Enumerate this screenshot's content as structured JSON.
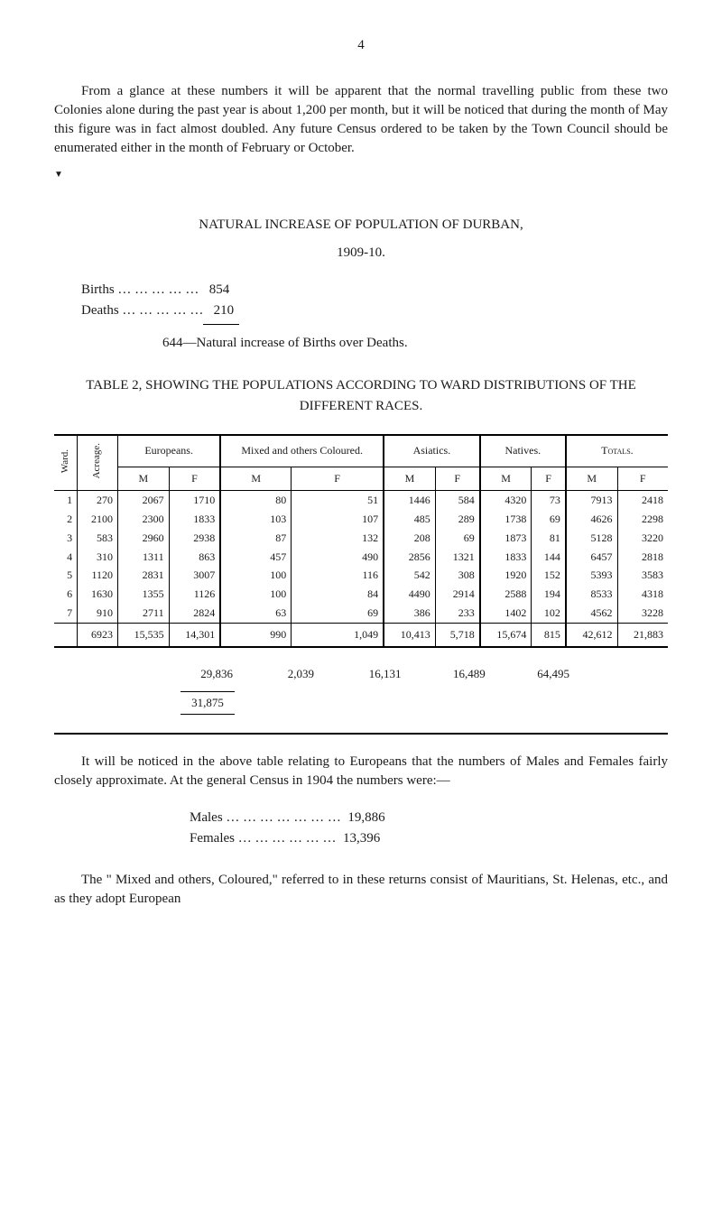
{
  "page_number": "4",
  "para1": "From a glance at these numbers it will be apparent that the normal travelling public from these two Colonies alone during the past year is about 1,200 per month, but it will be noticed that during the month of May this figure was in fact almost doubled. Any future Census ordered to be taken by the Town Council should be enumerated either in the month of February or October.",
  "section1_title": "NATURAL INCREASE OF POPULATION OF DURBAN,",
  "section1_subtitle": "1909-10.",
  "births_label": "Births … … … … …",
  "births_value": "854",
  "deaths_label": "Deaths … … … … …",
  "deaths_value": "210",
  "natural_increase": "644—Natural increase of Births over Deaths.",
  "table_caption": "TABLE 2, SHOWING THE POPULATIONS ACCORDING TO WARD DISTRIBUTIONS OF THE DIFFERENT RACES.",
  "table": {
    "col_ward": "Ward.",
    "col_acreage": "Acreage.",
    "groups": [
      "Europeans.",
      "Mixed and others Coloured.",
      "Asiatics.",
      "Natives.",
      "Totals."
    ],
    "sub_m": "M",
    "sub_f": "F",
    "rows": [
      {
        "ward": "1",
        "acre": "270",
        "em": "2067",
        "ef": "1710",
        "mm": "80",
        "mf": "51",
        "am": "1446",
        "af": "584",
        "nm": "4320",
        "nf": "73",
        "tm": "7913",
        "tf": "2418"
      },
      {
        "ward": "2",
        "acre": "2100",
        "em": "2300",
        "ef": "1833",
        "mm": "103",
        "mf": "107",
        "am": "485",
        "af": "289",
        "nm": "1738",
        "nf": "69",
        "tm": "4626",
        "tf": "2298"
      },
      {
        "ward": "3",
        "acre": "583",
        "em": "2960",
        "ef": "2938",
        "mm": "87",
        "mf": "132",
        "am": "208",
        "af": "69",
        "nm": "1873",
        "nf": "81",
        "tm": "5128",
        "tf": "3220"
      },
      {
        "ward": "4",
        "acre": "310",
        "em": "1311",
        "ef": "863",
        "mm": "457",
        "mf": "490",
        "am": "2856",
        "af": "1321",
        "nm": "1833",
        "nf": "144",
        "tm": "6457",
        "tf": "2818"
      },
      {
        "ward": "5",
        "acre": "1120",
        "em": "2831",
        "ef": "3007",
        "mm": "100",
        "mf": "116",
        "am": "542",
        "af": "308",
        "nm": "1920",
        "nf": "152",
        "tm": "5393",
        "tf": "3583"
      },
      {
        "ward": "6",
        "acre": "1630",
        "em": "1355",
        "ef": "1126",
        "mm": "100",
        "mf": "84",
        "am": "4490",
        "af": "2914",
        "nm": "2588",
        "nf": "194",
        "tm": "8533",
        "tf": "4318"
      },
      {
        "ward": "7",
        "acre": "910",
        "em": "2711",
        "ef": "2824",
        "mm": "63",
        "mf": "69",
        "am": "386",
        "af": "233",
        "nm": "1402",
        "nf": "102",
        "tm": "4562",
        "tf": "3228"
      }
    ],
    "totals": {
      "acre": "6923",
      "em": "15,535",
      "ef": "14,301",
      "mm": "990",
      "mf": "1,049",
      "am": "10,413",
      "af": "5,718",
      "nm": "15,674",
      "nf": "815",
      "tm": "42,612",
      "tf": "21,883"
    },
    "group_totals": {
      "europeans": "29,836",
      "mixed": "2,039",
      "asiatics": "16,131",
      "natives": "16,489",
      "totals": "64,495"
    },
    "grand": "31,875"
  },
  "para2": "It will be noticed in the above table relating to Europeans that the numbers of Males and Females fairly closely approximate. At the general Census in 1904 the numbers were:—",
  "males_label": "Males … … … … … … …",
  "males_value": "19,886",
  "females_label": "Females … … … … … …",
  "females_value": "13,396",
  "para3": "The \" Mixed and others, Coloured,\" referred to in these returns consist of Mauritians, St. Helenas, etc., and as they adopt European"
}
